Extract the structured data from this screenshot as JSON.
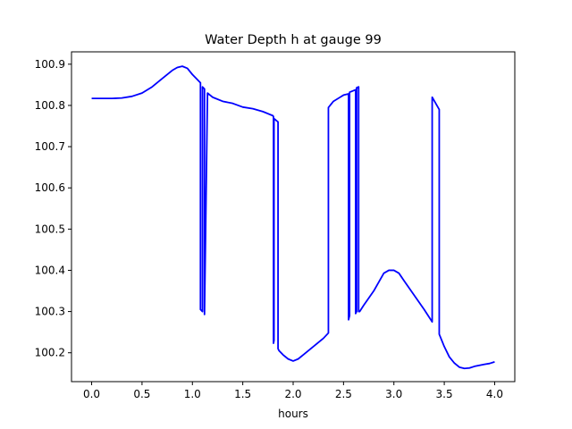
{
  "chart_data": {
    "type": "line",
    "title": "Water Depth h at gauge 99",
    "xlabel": "hours",
    "ylabel": "",
    "xlim": [
      -0.2,
      4.2
    ],
    "ylim": [
      100.13,
      100.93
    ],
    "xticks": [
      0.0,
      0.5,
      1.0,
      1.5,
      2.0,
      2.5,
      3.0,
      3.5,
      4.0
    ],
    "xtick_labels": [
      "0.0",
      "0.5",
      "1.0",
      "1.5",
      "2.0",
      "2.5",
      "3.0",
      "3.5",
      "4.0"
    ],
    "yticks": [
      100.2,
      100.3,
      100.4,
      100.5,
      100.6,
      100.7,
      100.8,
      100.9
    ],
    "ytick_labels": [
      "100.2",
      "100.3",
      "100.4",
      "100.5",
      "100.6",
      "100.7",
      "100.8",
      "100.9"
    ],
    "grid": false,
    "series": [
      {
        "color": "#0000ff",
        "x": [
          0.0,
          0.1,
          0.2,
          0.3,
          0.4,
          0.5,
          0.6,
          0.7,
          0.8,
          0.85,
          0.9,
          0.95,
          1.0,
          1.08,
          1.08,
          1.1,
          1.1,
          1.12,
          1.12,
          1.15,
          1.2,
          1.3,
          1.4,
          1.5,
          1.6,
          1.7,
          1.8,
          1.805,
          1.805,
          1.81,
          1.81,
          1.85,
          1.85,
          1.86,
          1.9,
          1.95,
          2.0,
          2.05,
          2.1,
          2.15,
          2.2,
          2.3,
          2.35,
          2.35,
          2.4,
          2.5,
          2.55,
          2.55,
          2.56,
          2.56,
          2.62,
          2.62,
          2.63,
          2.63,
          2.65,
          2.65,
          2.66,
          2.7,
          2.8,
          2.9,
          2.95,
          3.0,
          3.05,
          3.1,
          3.2,
          3.3,
          3.38,
          3.38,
          3.45,
          3.45,
          3.5,
          3.55,
          3.6,
          3.65,
          3.7,
          3.75,
          3.8,
          3.9,
          3.95,
          4.0
        ],
        "y": [
          100.817,
          100.817,
          100.817,
          100.818,
          100.822,
          100.83,
          100.845,
          100.865,
          100.885,
          100.892,
          100.895,
          100.89,
          100.875,
          100.855,
          100.305,
          100.3,
          100.845,
          100.84,
          100.293,
          100.83,
          100.82,
          100.81,
          100.805,
          100.796,
          100.792,
          100.785,
          100.775,
          100.772,
          100.223,
          100.23,
          100.768,
          100.76,
          100.21,
          100.205,
          100.195,
          100.185,
          100.18,
          100.185,
          100.195,
          100.205,
          100.215,
          100.235,
          100.248,
          100.795,
          100.81,
          100.825,
          100.828,
          100.28,
          100.29,
          100.832,
          100.838,
          100.295,
          100.3,
          100.843,
          100.845,
          100.3,
          100.3,
          100.315,
          100.35,
          100.393,
          100.4,
          100.4,
          100.393,
          100.375,
          100.34,
          100.305,
          100.275,
          100.82,
          100.79,
          100.245,
          100.215,
          100.19,
          100.175,
          100.165,
          100.162,
          100.163,
          100.167,
          100.172,
          100.174,
          100.178
        ]
      }
    ]
  }
}
